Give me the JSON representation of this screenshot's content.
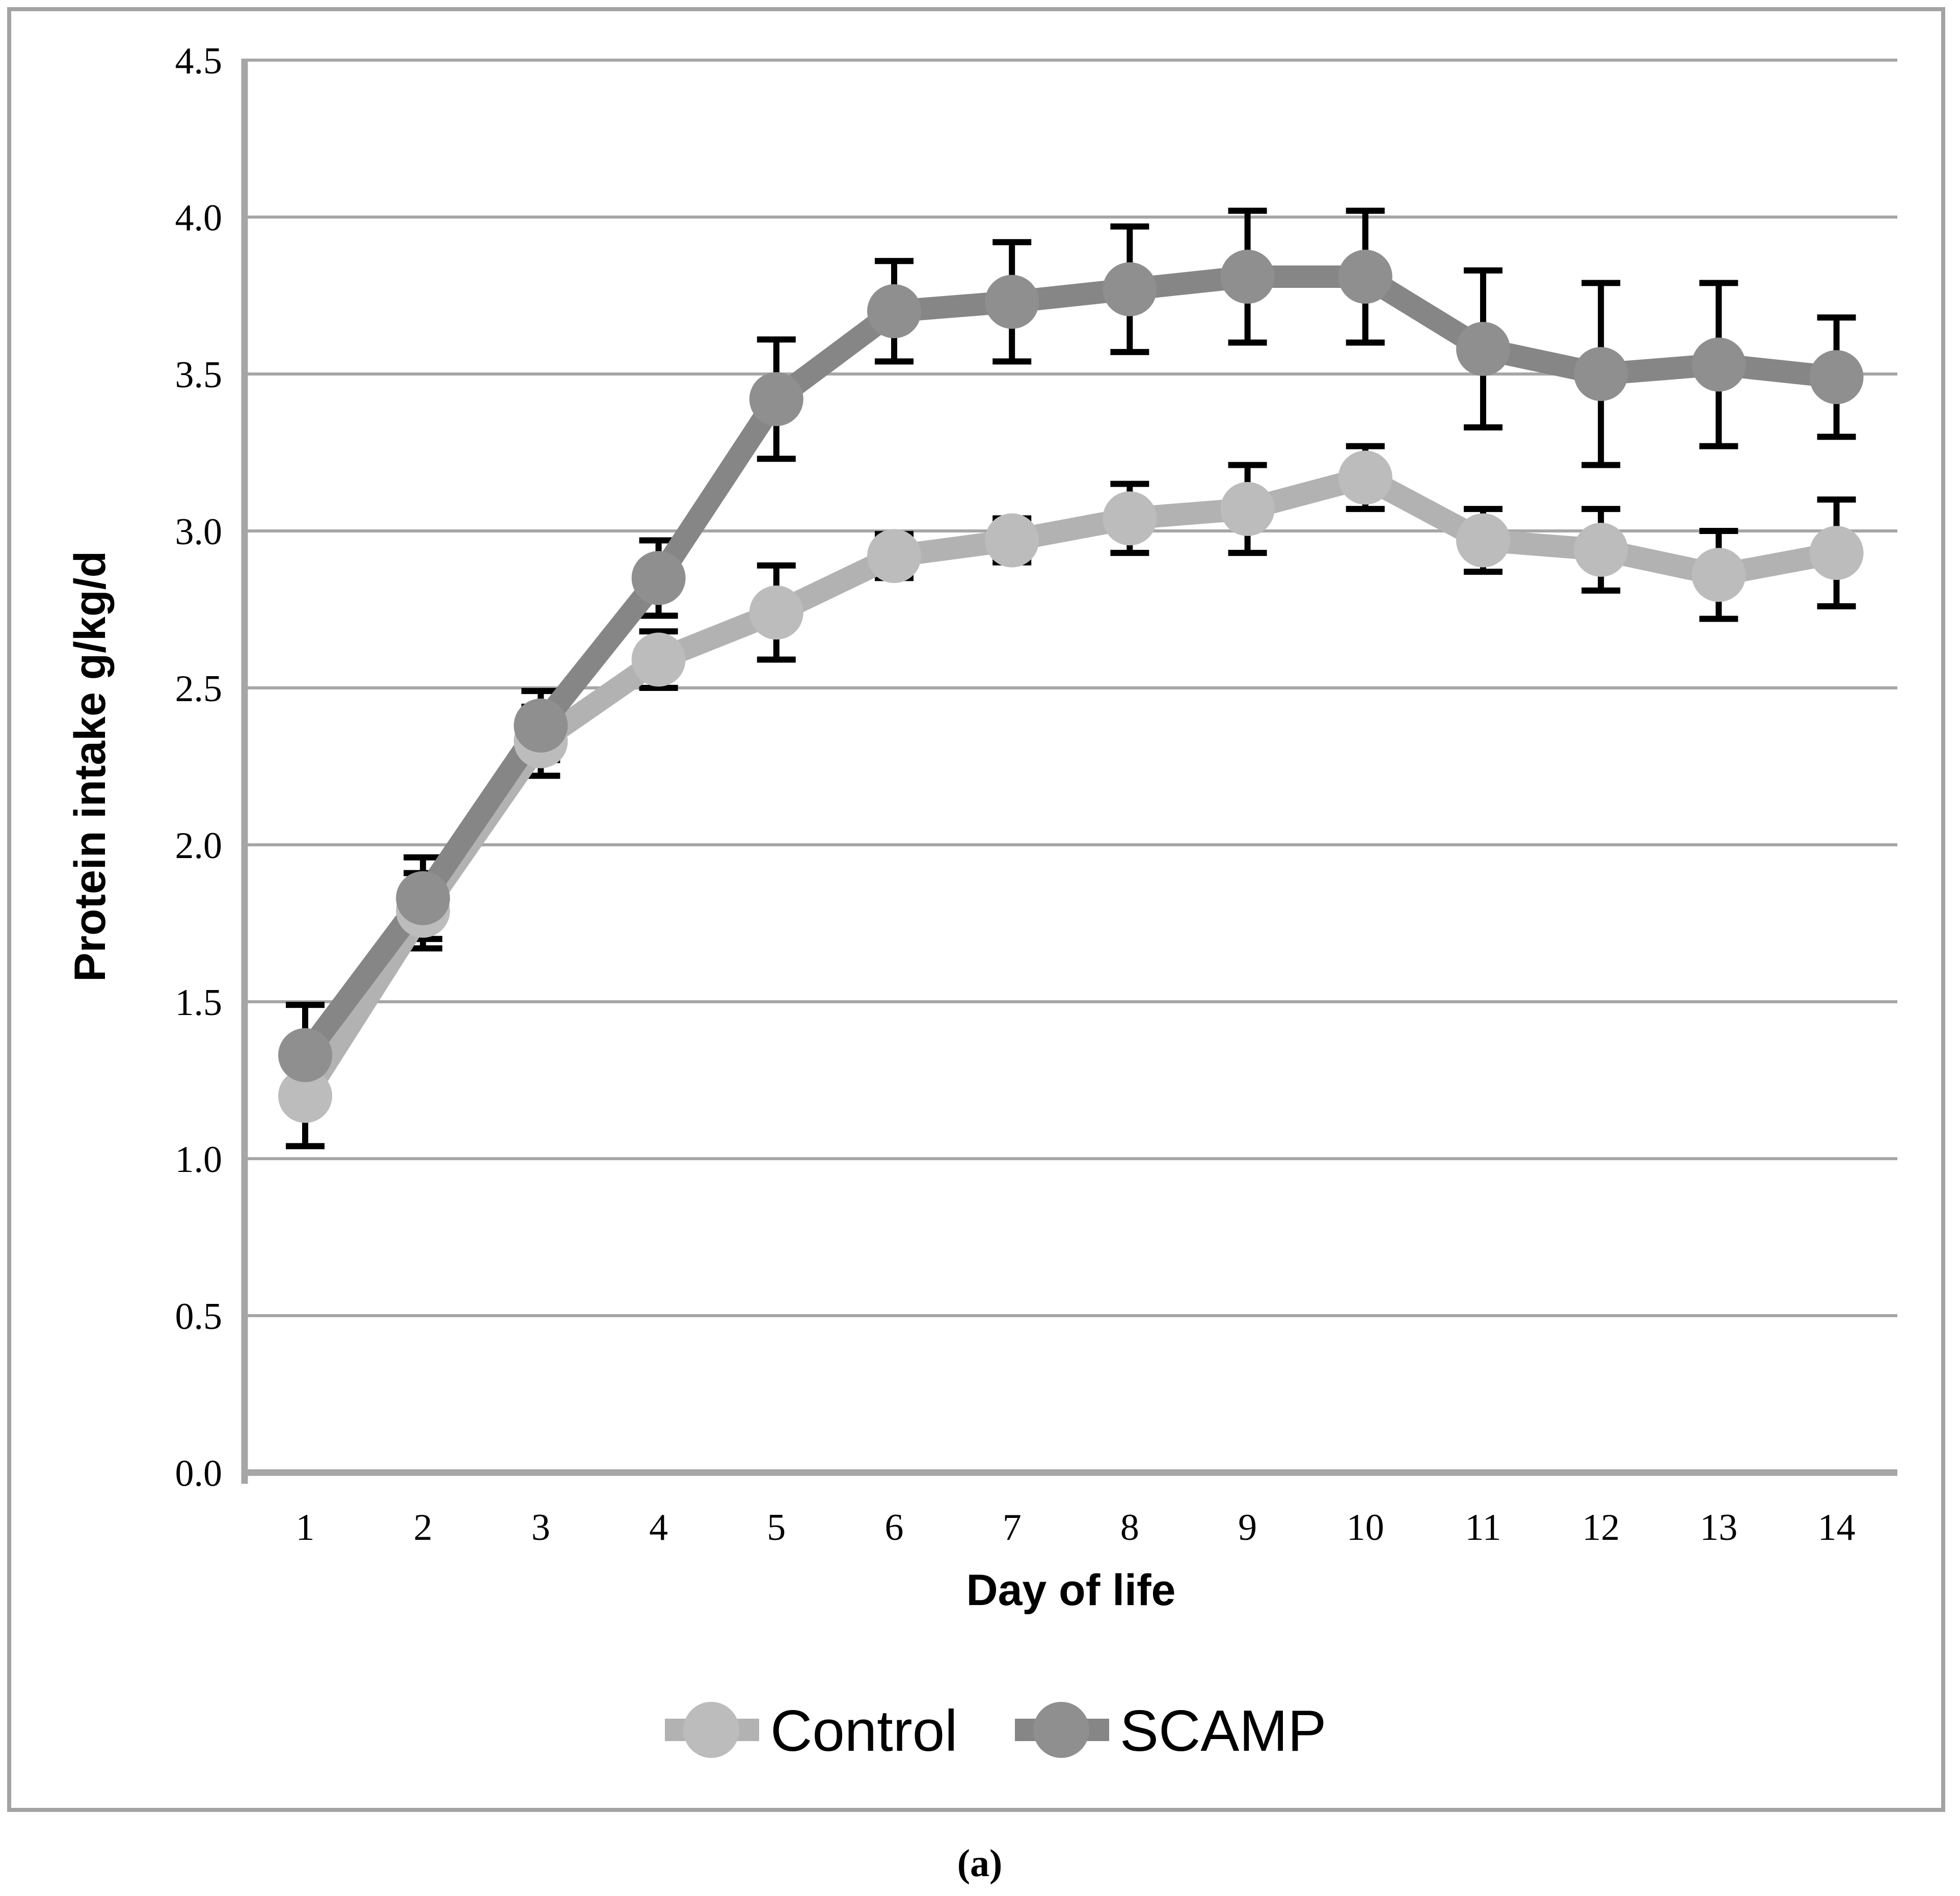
{
  "figure": {
    "caption": "(a)"
  },
  "chart_data": {
    "type": "line",
    "title": "",
    "xlabel": "Day of life",
    "ylabel": "Protein intake g/kg/d",
    "x": [
      1,
      2,
      3,
      4,
      5,
      6,
      7,
      8,
      9,
      10,
      11,
      12,
      13,
      14
    ],
    "xlim": [
      0.5,
      14.5
    ],
    "ylim": [
      0.0,
      4.5
    ],
    "ytick_step": 0.5,
    "ytick_labels": [
      "0.0",
      "0.5",
      "1.0",
      "1.5",
      "2.0",
      "2.5",
      "3.0",
      "3.5",
      "4.0",
      "4.5"
    ],
    "grid": "horizontal",
    "legend_position": "bottom",
    "error_bars": true,
    "error_bar_color": "#000000",
    "gridline_color": "#a6a6a6",
    "axis_line_color": "#a6a6a6",
    "frame_color": "#a3a3a3",
    "series": [
      {
        "name": "Control",
        "color": "#b2b2b2",
        "marker_color": "#bcbcbc",
        "values": [
          1.2,
          1.79,
          2.33,
          2.59,
          2.74,
          2.92,
          2.97,
          3.04,
          3.07,
          3.17,
          2.97,
          2.94,
          2.86,
          2.93
        ],
        "error": [
          0.16,
          0.12,
          0.11,
          0.09,
          0.15,
          0.07,
          0.07,
          0.11,
          0.14,
          0.1,
          0.1,
          0.13,
          0.14,
          0.17
        ]
      },
      {
        "name": "SCAMP",
        "color": "#868686",
        "marker_color": "#8f8f8f",
        "values": [
          1.33,
          1.83,
          2.38,
          2.85,
          3.42,
          3.7,
          3.73,
          3.77,
          3.81,
          3.81,
          3.58,
          3.5,
          3.53,
          3.49
        ],
        "error": [
          0.16,
          0.13,
          0.11,
          0.12,
          0.19,
          0.16,
          0.19,
          0.2,
          0.21,
          0.21,
          0.25,
          0.29,
          0.26,
          0.19
        ]
      }
    ]
  }
}
